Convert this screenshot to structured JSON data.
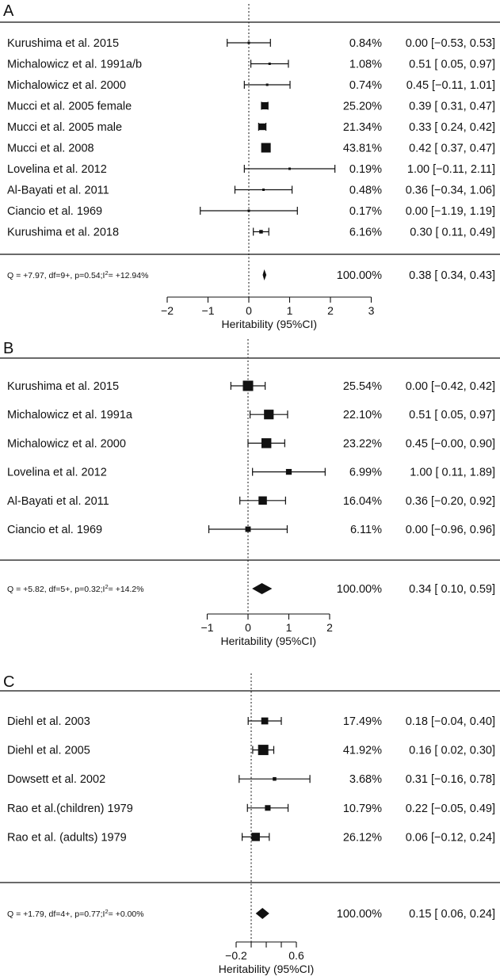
{
  "chart_data": [
    {
      "type": "forest",
      "panel_label": "A",
      "xlabel": "Heritability (95%CI)",
      "xlim": [
        -2,
        3
      ],
      "xticks": [
        -2,
        -1,
        0,
        1,
        2,
        3
      ],
      "xtick_labels": [
        "−2",
        "−1",
        "0",
        "1",
        "2",
        "3"
      ],
      "studies": [
        {
          "name": "Kurushima et al. 2015",
          "weight": "0.84%",
          "est": 0.0,
          "lo": -0.53,
          "hi": 0.53,
          "ci_text": "0.00 [−0.53, 0.53]"
        },
        {
          "name": "Michalowicz et al. 1991a/b",
          "weight": "1.08%",
          "est": 0.51,
          "lo": 0.05,
          "hi": 0.97,
          "ci_text": "0.51 [ 0.05, 0.97]"
        },
        {
          "name": "Michalowicz et al. 2000",
          "weight": "0.74%",
          "est": 0.45,
          "lo": -0.11,
          "hi": 1.01,
          "ci_text": "0.45 [−0.11, 1.01]"
        },
        {
          "name": "Mucci et al. 2005 female",
          "weight": "25.20%",
          "est": 0.39,
          "lo": 0.31,
          "hi": 0.47,
          "ci_text": "0.39 [ 0.31, 0.47]"
        },
        {
          "name": "Mucci et al. 2005 male",
          "weight": "21.34%",
          "est": 0.33,
          "lo": 0.24,
          "hi": 0.42,
          "ci_text": "0.33 [ 0.24, 0.42]"
        },
        {
          "name": "Mucci et al. 2008",
          "weight": "43.81%",
          "est": 0.42,
          "lo": 0.37,
          "hi": 0.47,
          "ci_text": "0.42 [ 0.37, 0.47]"
        },
        {
          "name": "Lovelina et al. 2012",
          "weight": "0.19%",
          "est": 1.0,
          "lo": -0.11,
          "hi": 2.11,
          "ci_text": "1.00 [−0.11, 2.11]"
        },
        {
          "name": "Al-Bayati et al. 2011",
          "weight": "0.48%",
          "est": 0.36,
          "lo": -0.34,
          "hi": 1.06,
          "ci_text": "0.36 [−0.34, 1.06]"
        },
        {
          "name": "Ciancio et al. 1969",
          "weight": "0.17%",
          "est": 0.0,
          "lo": -1.19,
          "hi": 1.19,
          "ci_text": "0.00 [−1.19, 1.19]"
        },
        {
          "name": "Kurushima et al. 2018",
          "weight": "6.16%",
          "est": 0.3,
          "lo": 0.11,
          "hi": 0.49,
          "ci_text": "0.30 [ 0.11, 0.49]"
        }
      ],
      "summary": {
        "stat_text": "Q = +7.97, df=9+, p=0.54;I",
        "stat_sup": "2",
        "stat_tail": "= +12.94%",
        "weight": "100.00%",
        "est": 0.38,
        "lo": 0.34,
        "hi": 0.43,
        "ci_text": "0.38 [ 0.34, 0.43]"
      }
    },
    {
      "type": "forest",
      "panel_label": "B",
      "xlabel": "Heritability (95%CI)",
      "xlim": [
        -1,
        2
      ],
      "xticks": [
        -1,
        0,
        1,
        2
      ],
      "xtick_labels": [
        "−1",
        "0",
        "1",
        "2"
      ],
      "studies": [
        {
          "name": "Kurushima et al. 2015",
          "weight": "25.54%",
          "est": 0.0,
          "lo": -0.42,
          "hi": 0.42,
          "ci_text": "0.00 [−0.42, 0.42]"
        },
        {
          "name": "Michalowicz et al. 1991a",
          "weight": "22.10%",
          "est": 0.51,
          "lo": 0.05,
          "hi": 0.97,
          "ci_text": "0.51 [ 0.05, 0.97]"
        },
        {
          "name": "Michalowicz et al. 2000",
          "weight": "23.22%",
          "est": 0.45,
          "lo": -0.0,
          "hi": 0.9,
          "ci_text": "0.45 [−0.00, 0.90]"
        },
        {
          "name": "Lovelina et al. 2012",
          "weight": "6.99%",
          "est": 1.0,
          "lo": 0.11,
          "hi": 1.89,
          "ci_text": "1.00 [ 0.11, 1.89]"
        },
        {
          "name": "Al-Bayati et al. 2011",
          "weight": "16.04%",
          "est": 0.36,
          "lo": -0.2,
          "hi": 0.92,
          "ci_text": "0.36 [−0.20, 0.92]"
        },
        {
          "name": "Ciancio et al. 1969",
          "weight": "6.11%",
          "est": 0.0,
          "lo": -0.96,
          "hi": 0.96,
          "ci_text": "0.00 [−0.96, 0.96]"
        }
      ],
      "summary": {
        "stat_text": "Q = +5.82, df=5+, p=0.32;I",
        "stat_sup": "2",
        "stat_tail": "= +14.2%",
        "weight": "100.00%",
        "est": 0.34,
        "lo": 0.1,
        "hi": 0.59,
        "ci_text": "0.34 [ 0.10, 0.59]"
      }
    },
    {
      "type": "forest",
      "panel_label": "C",
      "xlabel": "Heritability (95%CI)",
      "xlim": [
        -0.2,
        0.6
      ],
      "xticks": [
        -0.2,
        0.0,
        0.2,
        0.4,
        0.6
      ],
      "xtick_labels": [
        "−0.2",
        "",
        "",
        "",
        "0.6"
      ],
      "studies": [
        {
          "name": "Diehl et al. 2003",
          "weight": "17.49%",
          "est": 0.18,
          "lo": -0.04,
          "hi": 0.4,
          "ci_text": "0.18 [−0.04, 0.40]"
        },
        {
          "name": "Diehl et al. 2005",
          "weight": "41.92%",
          "est": 0.16,
          "lo": 0.02,
          "hi": 0.3,
          "ci_text": "0.16 [ 0.02, 0.30]"
        },
        {
          "name": "Dowsett et al. 2002",
          "weight": "3.68%",
          "est": 0.31,
          "lo": -0.16,
          "hi": 0.78,
          "ci_text": "0.31 [−0.16, 0.78]"
        },
        {
          "name": "Rao et al.(children) 1979",
          "weight": "10.79%",
          "est": 0.22,
          "lo": -0.05,
          "hi": 0.49,
          "ci_text": "0.22 [−0.05, 0.49]"
        },
        {
          "name": "Rao et al. (adults) 1979",
          "weight": "26.12%",
          "est": 0.06,
          "lo": -0.12,
          "hi": 0.24,
          "ci_text": "0.06 [−0.12, 0.24]"
        }
      ],
      "summary": {
        "stat_text": "Q = +1.79, df=4+, p=0.77;I",
        "stat_sup": "2",
        "stat_tail": "= +0.00%",
        "weight": "100.00%",
        "est": 0.15,
        "lo": 0.06,
        "hi": 0.24,
        "ci_text": "0.15 [ 0.06, 0.24]"
      }
    }
  ]
}
